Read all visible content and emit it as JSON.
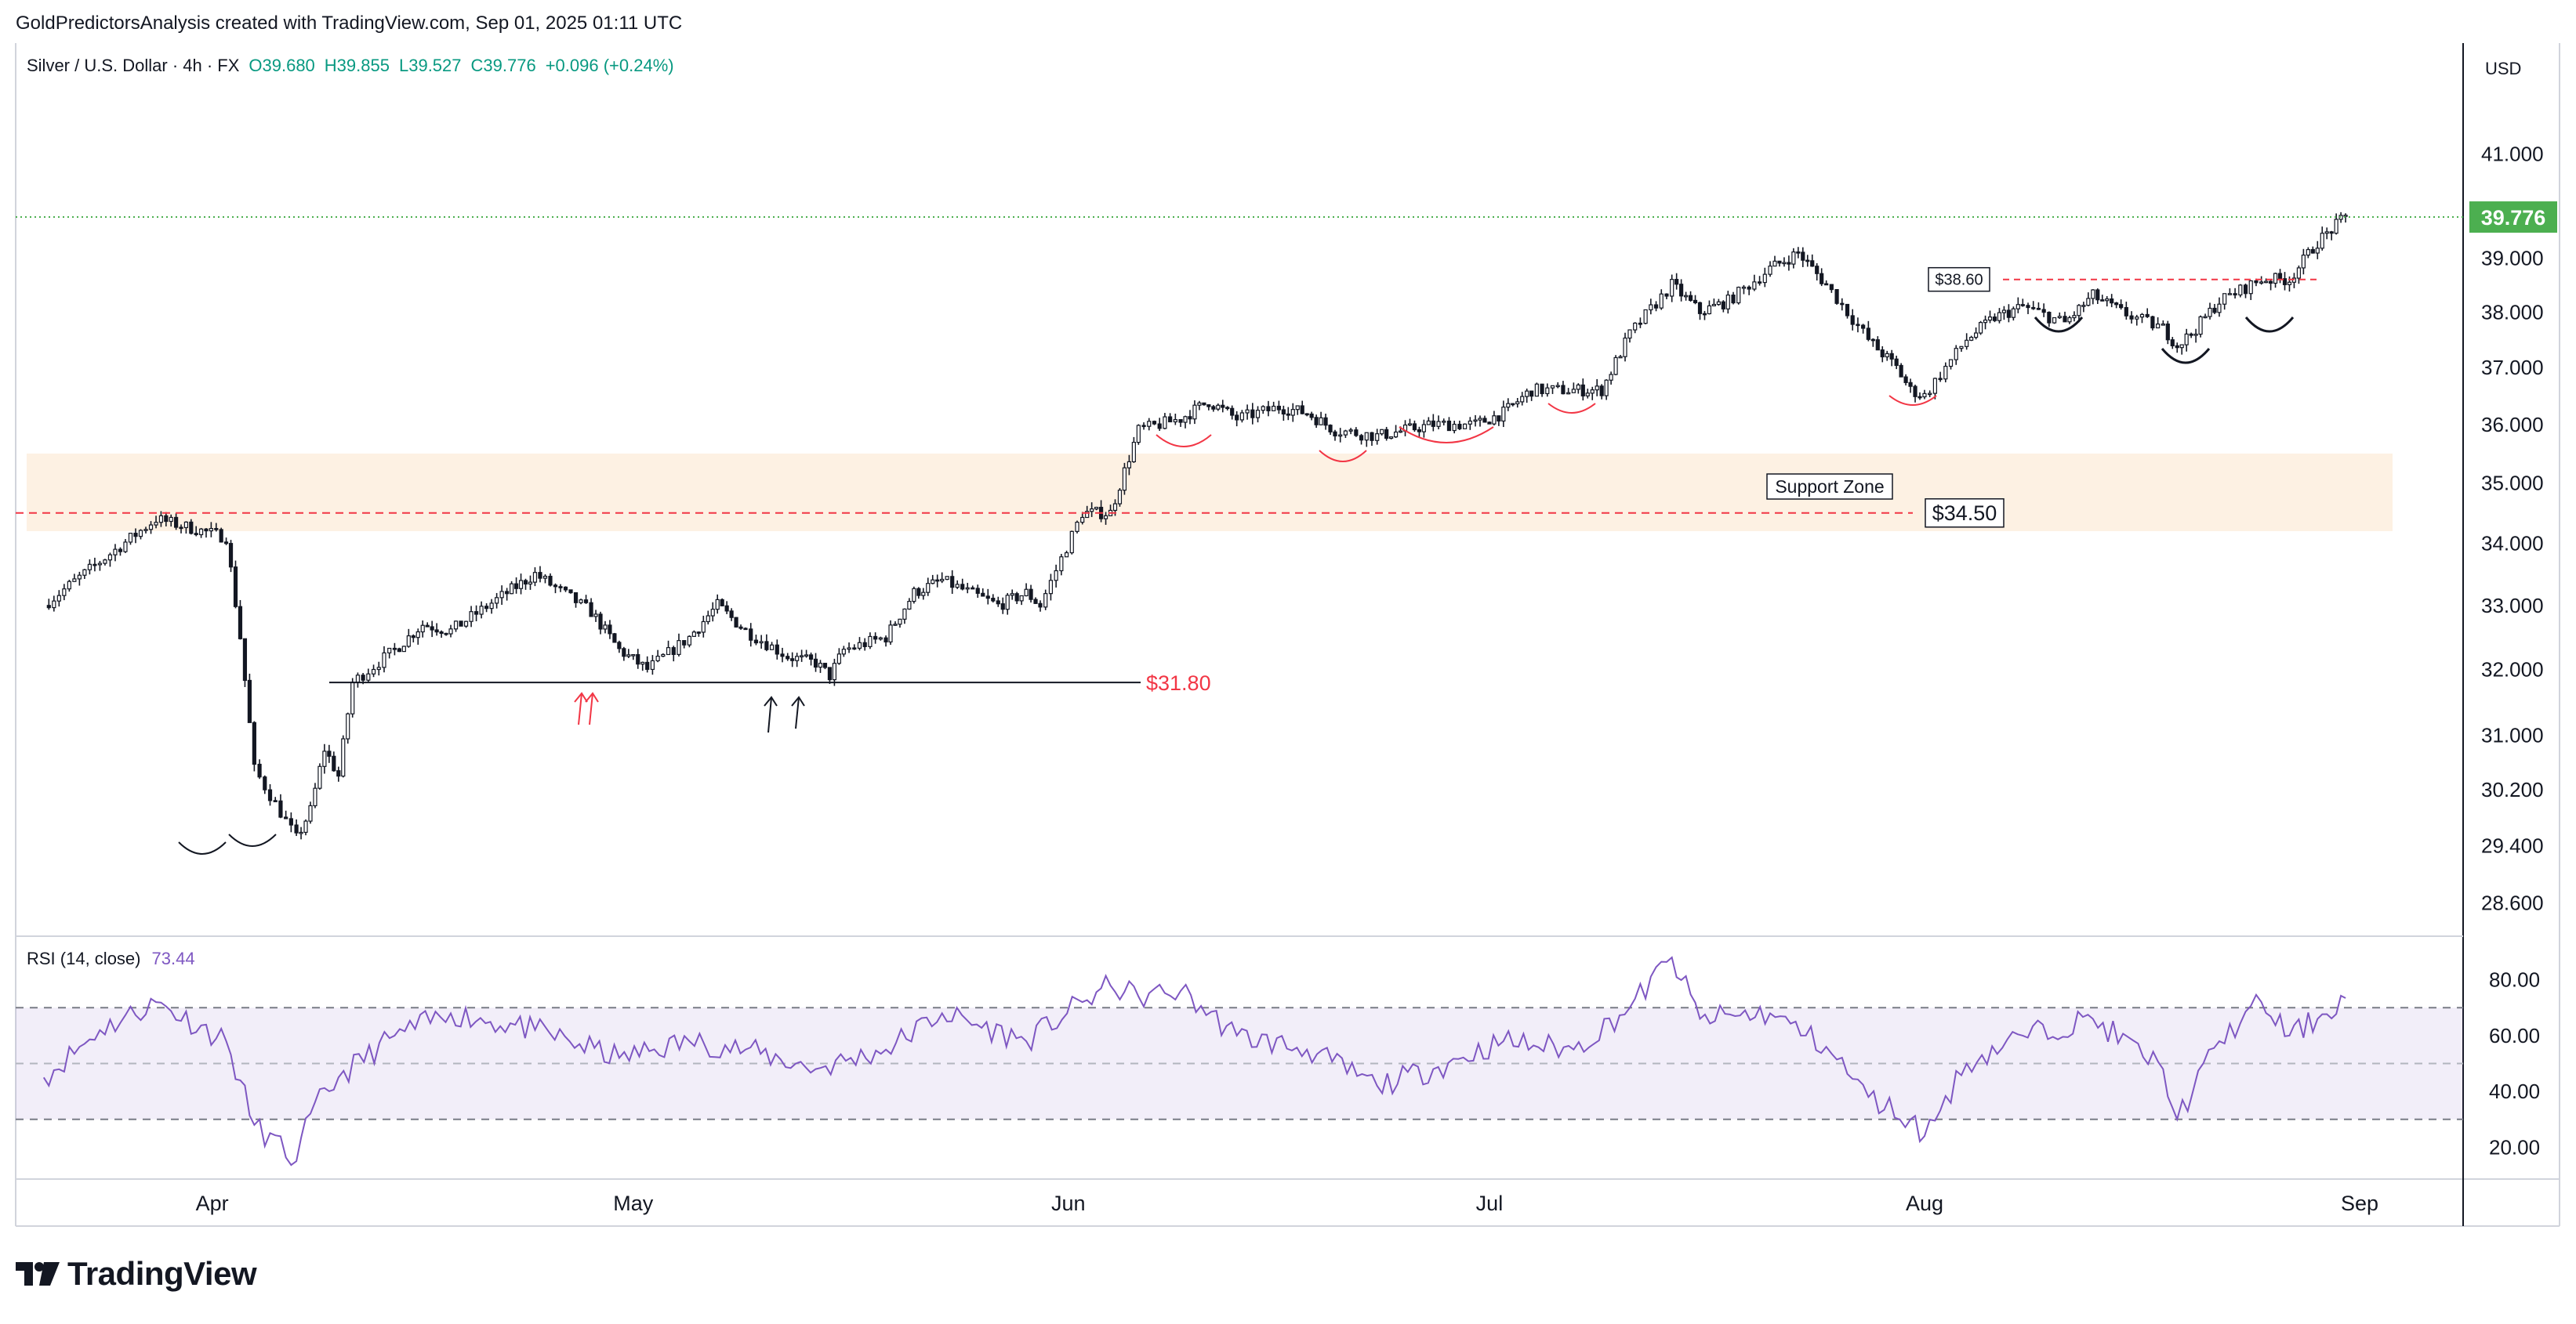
{
  "header": {
    "attribution": "GoldPredictorsAnalysis created with TradingView.com, Sep 01, 2025 01:11 UTC"
  },
  "legend": {
    "symbol": "Silver / U.S. Dollar · 4h · FX",
    "open": "O39.680",
    "high": "H39.855",
    "low": "L39.527",
    "close": "C39.776",
    "change": "+0.096 (+0.24%)"
  },
  "currency": "USD",
  "rsi_legend": {
    "name": "RSI (14, close)",
    "value": "73.44"
  },
  "brand": {
    "name": "TradingView"
  },
  "colors": {
    "up": "#089981",
    "down": "#f23645",
    "candle": "#131722",
    "rsi": "#7e57c2",
    "support_zone": "#fdf1e3",
    "accent_label": "#4caf50"
  },
  "annotations": {
    "support_zone_label": "Support Zone",
    "support_level_label": "$34.50",
    "low_level_label": "$31.80",
    "neckline_label": "$38.60",
    "current_price_label": "39.776"
  },
  "chart_data": [
    {
      "type": "candlestick",
      "title": "Silver / U.S. Dollar · 4h · FX",
      "x_ticks": [
        "Apr",
        "May",
        "Jun",
        "Jul",
        "Aug",
        "Sep"
      ],
      "y_ticks": [
        "41.000",
        "39.000",
        "38.000",
        "37.000",
        "36.000",
        "35.000",
        "34.000",
        "33.000",
        "32.000",
        "31.000",
        "30.200",
        "29.400",
        "28.600"
      ],
      "y_scale": "log",
      "ylim": [
        28.2,
        42.2
      ],
      "series": [
        {
          "name": "close",
          "x": [
            "2025-03-20",
            "2025-03-24",
            "2025-03-28",
            "2025-04-02",
            "2025-04-03",
            "2025-04-04",
            "2025-04-07",
            "2025-04-08",
            "2025-04-09",
            "2025-04-10",
            "2025-04-11",
            "2025-04-14",
            "2025-04-16",
            "2025-04-18",
            "2025-04-22",
            "2025-04-24",
            "2025-04-28",
            "2025-04-30",
            "2025-05-02",
            "2025-05-05",
            "2025-05-07",
            "2025-05-09",
            "2025-05-12",
            "2025-05-14",
            "2025-05-15",
            "2025-05-16",
            "2025-05-19",
            "2025-05-21",
            "2025-05-23",
            "2025-05-27",
            "2025-05-29",
            "2025-05-30",
            "2025-06-02",
            "2025-06-04",
            "2025-06-06",
            "2025-06-09",
            "2025-06-11",
            "2025-06-13",
            "2025-06-16",
            "2025-06-18",
            "2025-06-20",
            "2025-06-23",
            "2025-06-25",
            "2025-06-27",
            "2025-06-30",
            "2025-07-02",
            "2025-07-04",
            "2025-07-07",
            "2025-07-09",
            "2025-07-11",
            "2025-07-14",
            "2025-07-16",
            "2025-07-18",
            "2025-07-21",
            "2025-07-23",
            "2025-07-25",
            "2025-07-28",
            "2025-07-30",
            "2025-07-31",
            "2025-08-01",
            "2025-08-04",
            "2025-08-06",
            "2025-08-08",
            "2025-08-11",
            "2025-08-13",
            "2025-08-15",
            "2025-08-18",
            "2025-08-19",
            "2025-08-20",
            "2025-08-22",
            "2025-08-25",
            "2025-08-27",
            "2025-08-29",
            "2025-08-31"
          ],
          "values": [
            33.0,
            33.7,
            34.4,
            34.1,
            32.5,
            30.5,
            29.5,
            29.9,
            30.8,
            30.4,
            31.8,
            32.3,
            32.7,
            32.6,
            33.2,
            33.5,
            32.9,
            32.3,
            32.0,
            32.5,
            33.0,
            32.6,
            32.2,
            32.1,
            31.9,
            32.3,
            32.5,
            33.2,
            33.4,
            33.0,
            33.2,
            33.0,
            34.5,
            34.5,
            35.9,
            36.1,
            36.4,
            36.1,
            36.3,
            36.2,
            35.9,
            35.8,
            35.9,
            36.0,
            36.0,
            36.2,
            36.6,
            36.6,
            36.6,
            37.6,
            38.5,
            38.0,
            38.2,
            38.8,
            39.1,
            38.5,
            37.5,
            37.0,
            36.6,
            36.5,
            37.5,
            37.9,
            38.1,
            37.8,
            38.3,
            38.0,
            37.7,
            37.4,
            37.6,
            38.2,
            38.6,
            38.6,
            39.3,
            39.776
          ]
        }
      ],
      "annotations": [
        {
          "label": "Support Zone",
          "range": [
            34.2,
            35.5
          ]
        },
        {
          "label": "$34.50",
          "y": 34.5
        },
        {
          "label": "$31.80",
          "y": 31.8
        },
        {
          "label": "$38.60",
          "y": 38.6
        },
        {
          "label": "39.776",
          "y": 39.776
        }
      ]
    },
    {
      "type": "line",
      "title": "RSI (14, close)",
      "y_ticks": [
        "80.00",
        "60.00",
        "40.00",
        "20.00"
      ],
      "ylim": [
        10,
        90
      ],
      "bands": {
        "upper": 70,
        "middle": 50,
        "lower": 30
      },
      "series": [
        {
          "name": "RSI (14, close)",
          "x": [
            "2025-03-20",
            "2025-03-24",
            "2025-03-28",
            "2025-04-02",
            "2025-04-04",
            "2025-04-07",
            "2025-04-08",
            "2025-04-10",
            "2025-04-14",
            "2025-04-18",
            "2025-04-24",
            "2025-04-30",
            "2025-05-05",
            "2025-05-09",
            "2025-05-14",
            "2025-05-19",
            "2025-05-23",
            "2025-05-29",
            "2025-06-02",
            "2025-06-04",
            "2025-06-06",
            "2025-06-09",
            "2025-06-13",
            "2025-06-18",
            "2025-06-23",
            "2025-06-27",
            "2025-07-02",
            "2025-07-07",
            "2025-07-11",
            "2025-07-14",
            "2025-07-16",
            "2025-07-21",
            "2025-07-25",
            "2025-07-28",
            "2025-07-31",
            "2025-08-01",
            "2025-08-04",
            "2025-08-08",
            "2025-08-13",
            "2025-08-18",
            "2025-08-19",
            "2025-08-22",
            "2025-08-25",
            "2025-08-27",
            "2025-08-29",
            "2025-08-31"
          ],
          "values": [
            45,
            62,
            72,
            58,
            28,
            15,
            32,
            45,
            60,
            68,
            62,
            52,
            58,
            55,
            48,
            55,
            68,
            58,
            72,
            78,
            74,
            76,
            60,
            55,
            42,
            48,
            58,
            55,
            70,
            88,
            66,
            68,
            56,
            38,
            30,
            24,
            50,
            60,
            66,
            48,
            30,
            58,
            72,
            60,
            66,
            73.44
          ]
        }
      ]
    }
  ]
}
